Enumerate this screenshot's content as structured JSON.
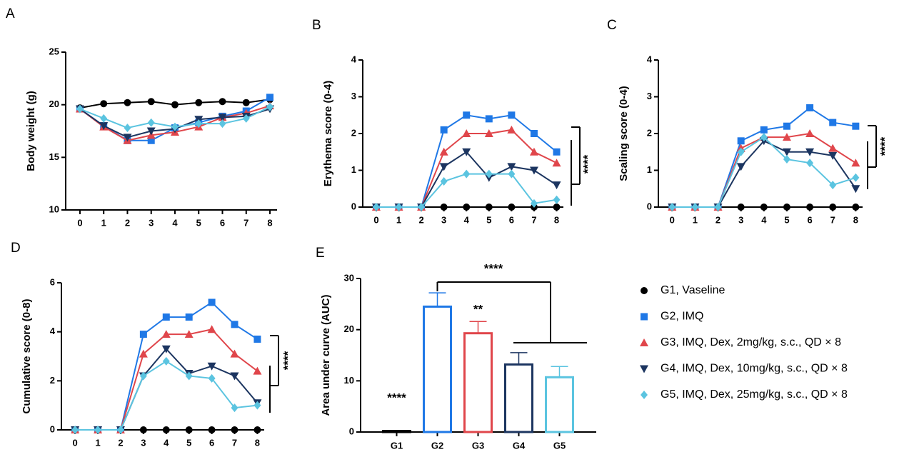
{
  "legend": [
    {
      "name": "G1, Vaseline",
      "color": "#000000",
      "marker": "circle"
    },
    {
      "name": "G2, IMQ",
      "color": "#1f78e6",
      "marker": "square"
    },
    {
      "name": "G3, IMQ, Dex, 2mg/kg, s.c., QD × 8",
      "color": "#e0464b",
      "marker": "triangle-up"
    },
    {
      "name": "G4, IMQ, Dex, 10mg/kg, s.c., QD × 8",
      "color": "#1c3560",
      "marker": "triangle-down"
    },
    {
      "name": "G5, IMQ, Dex, 25mg/kg, s.c., QD × 8",
      "color": "#5bc4e0",
      "marker": "diamond"
    }
  ],
  "chart_data": [
    {
      "type": "line",
      "label": "A",
      "y_label": "Body weight (g)",
      "x": [
        0,
        1,
        2,
        3,
        4,
        5,
        6,
        7,
        8
      ],
      "xlim": [
        -0.6,
        8.3
      ],
      "xticks": [
        0,
        1,
        2,
        3,
        4,
        5,
        6,
        7,
        8
      ],
      "ylim": [
        10,
        25
      ],
      "yticks": [
        10,
        15,
        20,
        25
      ],
      "series": [
        {
          "values": [
            19.7,
            20.1,
            20.2,
            20.3,
            20.0,
            20.2,
            20.3,
            20.2,
            20.5
          ]
        },
        {
          "values": [
            19.6,
            18.0,
            16.6,
            16.6,
            17.8,
            18.3,
            18.9,
            19.4,
            20.7
          ]
        },
        {
          "values": [
            19.6,
            17.9,
            16.6,
            17.1,
            17.4,
            17.9,
            18.8,
            19.2,
            19.9
          ]
        },
        {
          "values": [
            19.6,
            18.0,
            16.9,
            17.5,
            17.7,
            18.6,
            18.8,
            18.9,
            19.6
          ]
        },
        {
          "values": [
            19.6,
            18.7,
            17.8,
            18.3,
            17.9,
            18.2,
            18.2,
            18.7,
            19.8
          ]
        }
      ]
    },
    {
      "type": "line",
      "label": "B",
      "y_label": "Erythema score (0-4)",
      "x": [
        0,
        1,
        2,
        3,
        4,
        5,
        6,
        7,
        8
      ],
      "xlim": [
        -0.6,
        8.3
      ],
      "xticks": [
        0,
        1,
        2,
        3,
        4,
        5,
        6,
        7,
        8
      ],
      "ylim": [
        0,
        4
      ],
      "yticks": [
        0,
        1,
        2,
        3,
        4
      ],
      "annotations": [
        "****"
      ],
      "series": [
        {
          "values": [
            0,
            0,
            0,
            0,
            0,
            0,
            0,
            0,
            0
          ]
        },
        {
          "values": [
            0,
            0,
            0,
            2.1,
            2.5,
            2.4,
            2.5,
            2.0,
            1.5
          ]
        },
        {
          "values": [
            0,
            0,
            0,
            1.5,
            2.0,
            2.0,
            2.1,
            1.5,
            1.2
          ]
        },
        {
          "values": [
            0,
            0,
            0,
            1.1,
            1.5,
            0.8,
            1.1,
            1.0,
            0.6
          ]
        },
        {
          "values": [
            0,
            0,
            0,
            0.7,
            0.9,
            0.9,
            0.9,
            0.1,
            0.2
          ]
        }
      ]
    },
    {
      "type": "line",
      "label": "C",
      "y_label": "Scaling score (0-4)",
      "x": [
        0,
        1,
        2,
        3,
        4,
        5,
        6,
        7,
        8
      ],
      "xlim": [
        -0.6,
        8.3
      ],
      "xticks": [
        0,
        1,
        2,
        3,
        4,
        5,
        6,
        7,
        8
      ],
      "ylim": [
        0,
        4
      ],
      "yticks": [
        0,
        1,
        2,
        3,
        4
      ],
      "annotations": [
        "****"
      ],
      "series": [
        {
          "values": [
            0,
            0,
            0,
            0,
            0,
            0,
            0,
            0,
            0
          ]
        },
        {
          "values": [
            0,
            0,
            0,
            1.8,
            2.1,
            2.2,
            2.7,
            2.3,
            2.2
          ]
        },
        {
          "values": [
            0,
            0,
            0,
            1.6,
            1.9,
            1.9,
            2.0,
            1.6,
            1.2
          ]
        },
        {
          "values": [
            0,
            0,
            0,
            1.1,
            1.8,
            1.5,
            1.5,
            1.4,
            0.5
          ]
        },
        {
          "values": [
            0,
            0,
            0,
            1.5,
            1.9,
            1.3,
            1.2,
            0.6,
            0.8
          ]
        }
      ]
    },
    {
      "type": "line",
      "label": "D",
      "y_label": "Cumulative score (0-8)",
      "x": [
        0,
        1,
        2,
        3,
        4,
        5,
        6,
        7,
        8
      ],
      "xlim": [
        -0.6,
        8.3
      ],
      "xticks": [
        0,
        1,
        2,
        3,
        4,
        5,
        6,
        7,
        8
      ],
      "ylim": [
        0,
        6
      ],
      "yticks": [
        0,
        2,
        4,
        6
      ],
      "annotations": [
        "****"
      ],
      "series": [
        {
          "values": [
            0,
            0,
            0,
            0,
            0,
            0,
            0,
            0,
            0
          ]
        },
        {
          "values": [
            0,
            0,
            0,
            3.9,
            4.6,
            4.6,
            5.2,
            4.3,
            3.7
          ]
        },
        {
          "values": [
            0,
            0,
            0,
            3.1,
            3.9,
            3.9,
            4.1,
            3.1,
            2.4
          ]
        },
        {
          "values": [
            0,
            0,
            0,
            2.2,
            3.3,
            2.3,
            2.6,
            2.2,
            1.1
          ]
        },
        {
          "values": [
            0,
            0,
            0,
            2.2,
            2.8,
            2.2,
            2.1,
            0.9,
            1.0
          ]
        }
      ]
    },
    {
      "type": "bar",
      "label": "E",
      "y_label": "Area under curve (AUC)",
      "categories": [
        "G1",
        "G2",
        "G3",
        "G4",
        "G5"
      ],
      "values": [
        0.2,
        24.5,
        19.3,
        13.2,
        10.7
      ],
      "errors": [
        0,
        2.7,
        2.3,
        2.3,
        2.1
      ],
      "ylim": [
        0,
        30
      ],
      "yticks": [
        0,
        10,
        20,
        30
      ],
      "annotations": [
        "****",
        "**",
        "****"
      ]
    }
  ]
}
